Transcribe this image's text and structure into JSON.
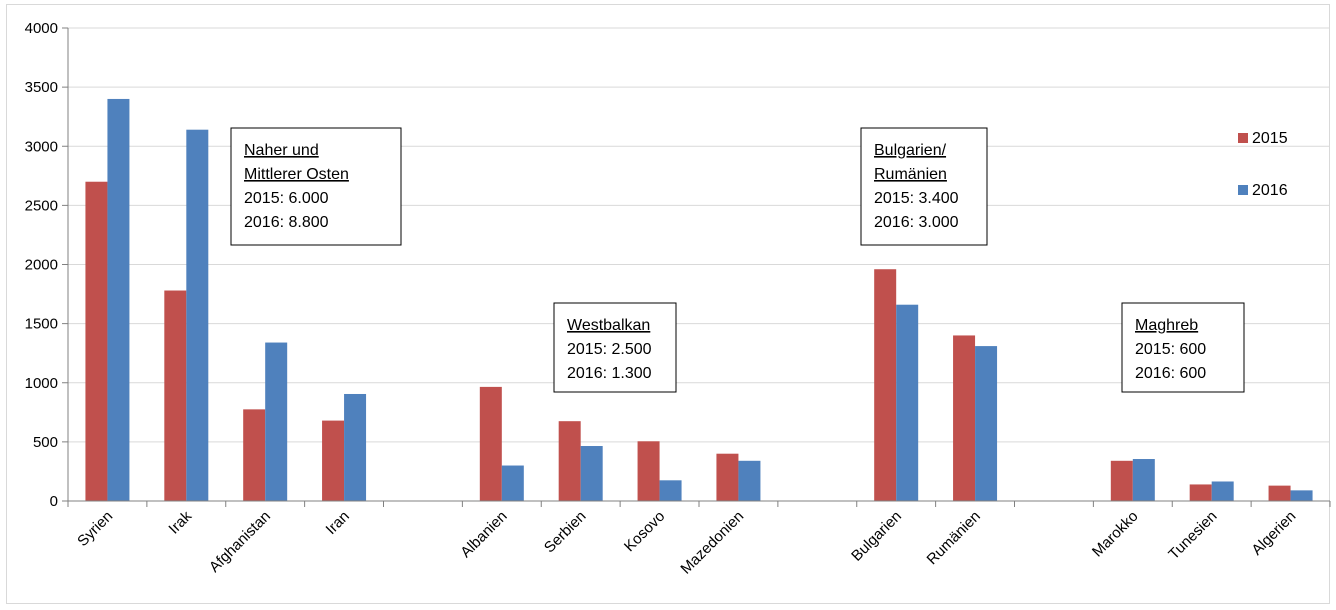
{
  "chart_data": {
    "type": "bar",
    "title": "",
    "xlabel": "",
    "ylabel": "",
    "ylim": [
      0,
      4000
    ],
    "yticks": [
      0,
      500,
      1000,
      1500,
      2000,
      2500,
      3000,
      3500,
      4000
    ],
    "grid": true,
    "legend_position": "right",
    "categories": [
      "Syrien",
      "Irak",
      "Afghanistan",
      "Iran",
      "",
      "Albanien",
      "Serbien",
      "Kosovo",
      "Mazedonien",
      "",
      "Bulgarien",
      "Rumänien",
      "",
      "Marokko",
      "Tunesien",
      "Algerien"
    ],
    "series": [
      {
        "name": "2015",
        "color": "#c0504d",
        "values": [
          2700,
          1780,
          775,
          680,
          null,
          965,
          675,
          505,
          400,
          null,
          1960,
          1400,
          null,
          340,
          140,
          130
        ]
      },
      {
        "name": "2016",
        "color": "#4f81bd",
        "values": [
          3400,
          3140,
          1340,
          905,
          null,
          300,
          465,
          175,
          340,
          null,
          1660,
          1310,
          null,
          355,
          165,
          90
        ]
      }
    ],
    "annotations": [
      {
        "lines": [
          "Naher und",
          "Mittlerer Osten",
          "2015: 6.000",
          "2016: 8.800"
        ],
        "underlined_lines": 2
      },
      {
        "lines": [
          "Westbalkan",
          "2015: 2.500",
          "2016: 1.300"
        ],
        "underlined_lines": 1
      },
      {
        "lines": [
          "Bulgarien/",
          "Rumänien",
          "2015: 3.400",
          "2016: 3.000"
        ],
        "underlined_lines": 2
      },
      {
        "lines": [
          "Maghreb",
          "2015: 600",
          "2016: 600"
        ],
        "underlined_lines": 1
      }
    ]
  }
}
